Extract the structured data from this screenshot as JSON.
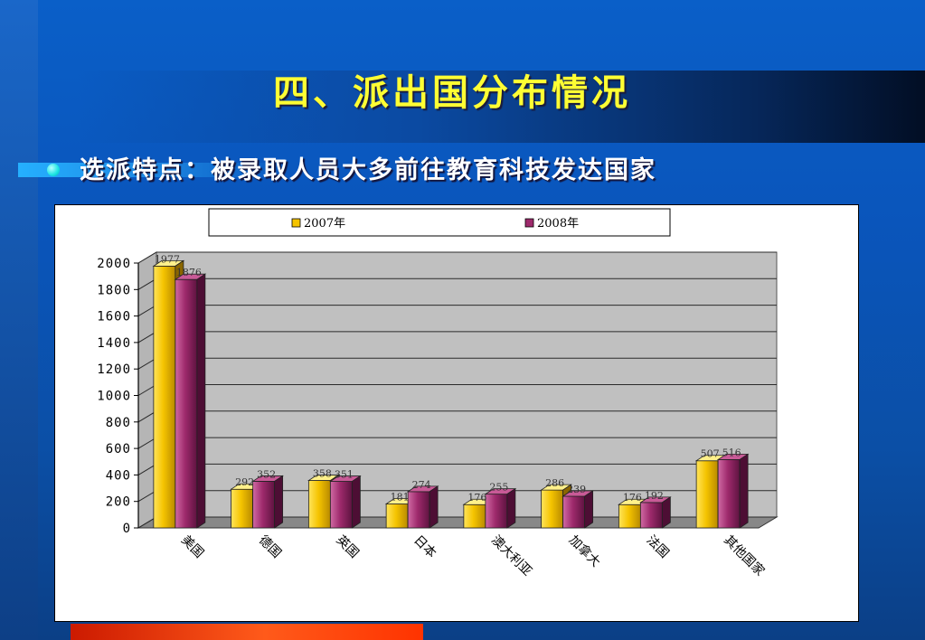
{
  "slide": {
    "title": "四、派出国分布情况",
    "bullet": "选派特点：被录取人员大多前往教育科技发达国家"
  },
  "colors": {
    "series_2007": "#f5c400",
    "series_2008": "#9e2a6c",
    "plot_bg": "#c0c0c0",
    "title_color": "#ffff33"
  },
  "chart_data": {
    "type": "bar",
    "categories": [
      "美国",
      "德国",
      "英国",
      "日本",
      "澳大利亚",
      "加拿大",
      "法国",
      "其他国家"
    ],
    "series": [
      {
        "name": "2007年",
        "values": [
          1977,
          292,
          358,
          181,
          176,
          286,
          176,
          507
        ]
      },
      {
        "name": "2008年",
        "values": [
          1876,
          352,
          351,
          274,
          255,
          239,
          192,
          516
        ]
      }
    ],
    "ylim": [
      0,
      2000
    ],
    "yticks": [
      "0",
      "200",
      "400",
      "600",
      "800",
      "1000",
      "1200",
      "1400",
      "1600",
      "1800",
      "2000"
    ],
    "grid": true,
    "legend": "top"
  }
}
